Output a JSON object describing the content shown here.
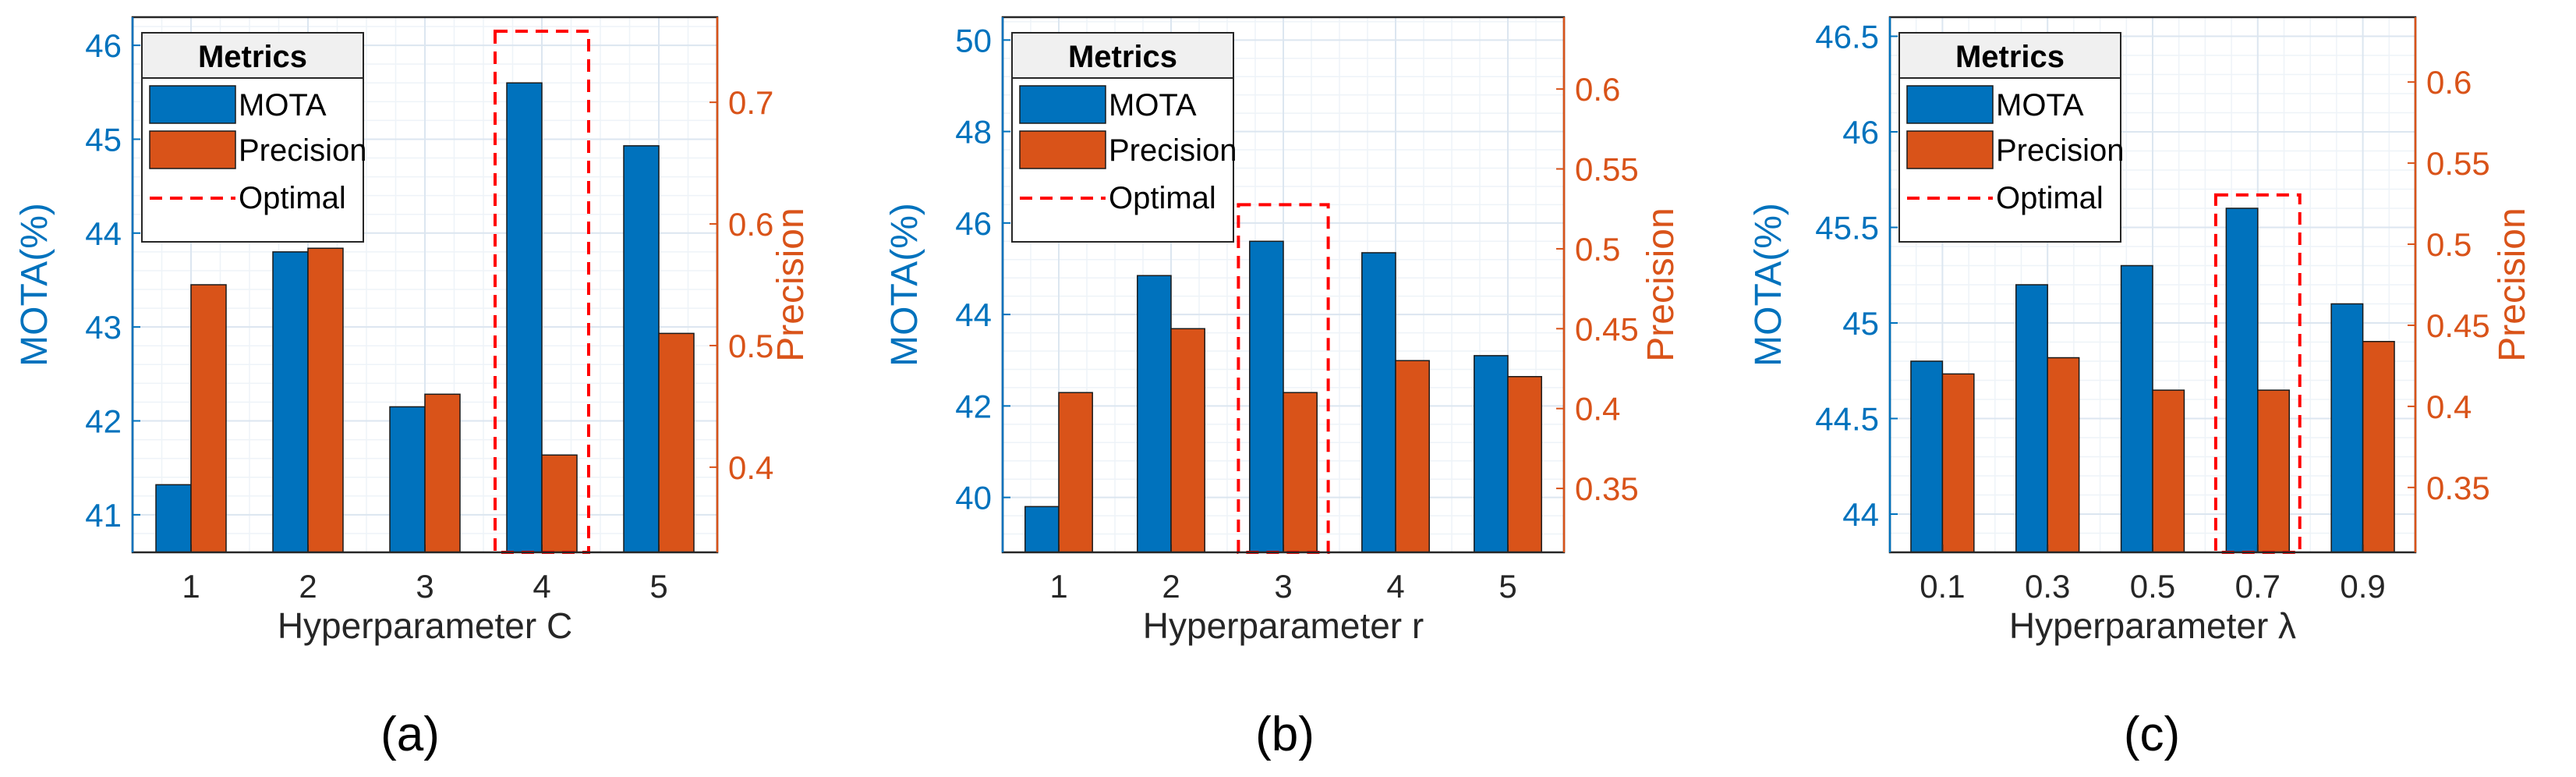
{
  "colors": {
    "mota": "#0072BD",
    "precision": "#D95319",
    "optimal": "#FF0000",
    "axis": "#262626",
    "grid": "#DCE6F0"
  },
  "chart_data": [
    {
      "type": "bar",
      "caption_label": "a",
      "xlabel": "Hyperparameter C",
      "ylabel_left": "MOTA(%)",
      "ylabel_right": "Precision",
      "categories": [
        "1",
        "2",
        "3",
        "4",
        "5"
      ],
      "series": [
        {
          "name": "MOTA",
          "axis": "left",
          "values": [
            41.32,
            43.8,
            42.15,
            45.6,
            44.93
          ]
        },
        {
          "name": "Precision",
          "axis": "right",
          "values": [
            0.55,
            0.58,
            0.46,
            0.41,
            0.51
          ]
        }
      ],
      "ylim_left": [
        40.6,
        46.3
      ],
      "yticks_left": [
        "41",
        "42",
        "43",
        "44",
        "45",
        "46"
      ],
      "ylim_right": [
        0.33,
        0.77
      ],
      "yticks_right": [
        "0.4",
        "0.5",
        "0.6",
        "0.7"
      ],
      "optimal_index": 3,
      "optimal_top_left": 46.15,
      "legend": {
        "title": "Metrics",
        "entries": [
          "MOTA",
          "Precision",
          "Optimal"
        ],
        "position": "top-left"
      }
    },
    {
      "type": "bar",
      "caption_label": "b",
      "xlabel": "Hyperparameter r",
      "ylabel_left": "MOTA(%)",
      "ylabel_right": "Precision",
      "categories": [
        "1",
        "2",
        "3",
        "4",
        "5"
      ],
      "series": [
        {
          "name": "MOTA",
          "axis": "left",
          "values": [
            39.8,
            44.85,
            45.6,
            45.35,
            43.1
          ]
        },
        {
          "name": "Precision",
          "axis": "right",
          "values": [
            0.41,
            0.45,
            0.41,
            0.43,
            0.42
          ]
        }
      ],
      "ylim_left": [
        38.8,
        50.5
      ],
      "yticks_left": [
        "40",
        "42",
        "44",
        "46",
        "48",
        "50"
      ],
      "ylim_right": [
        0.31,
        0.645
      ],
      "yticks_right": [
        "0.35",
        "0.4",
        "0.45",
        "0.5",
        "0.55",
        "0.6"
      ],
      "optimal_index": 2,
      "optimal_top_left": 46.4,
      "legend": {
        "title": "Metrics",
        "entries": [
          "MOTA",
          "Precision",
          "Optimal"
        ],
        "position": "top-left"
      }
    },
    {
      "type": "bar",
      "caption_label": "c",
      "xlabel": "Hyperparameter λ",
      "ylabel_left": "MOTA(%)",
      "ylabel_right": "Precision",
      "categories": [
        "0.1",
        "0.3",
        "0.5",
        "0.7",
        "0.9"
      ],
      "series": [
        {
          "name": "MOTA",
          "axis": "left",
          "values": [
            44.8,
            45.2,
            45.3,
            45.6,
            45.1
          ]
        },
        {
          "name": "Precision",
          "axis": "right",
          "values": [
            0.42,
            0.43,
            0.41,
            0.41,
            0.44
          ]
        }
      ],
      "ylim_left": [
        43.8,
        46.6
      ],
      "yticks_left": [
        "44",
        "44.5",
        "45",
        "45.5",
        "46",
        "46.5"
      ],
      "ylim_right": [
        0.31,
        0.64
      ],
      "yticks_right": [
        "0.35",
        "0.4",
        "0.45",
        "0.5",
        "0.55",
        "0.6"
      ],
      "optimal_index": 3,
      "optimal_top_left": 45.67,
      "legend": {
        "title": "Metrics",
        "entries": [
          "MOTA",
          "Precision",
          "Optimal"
        ],
        "position": "top-left"
      }
    }
  ],
  "captions": [
    "(a)",
    "(b)",
    "(c)"
  ]
}
